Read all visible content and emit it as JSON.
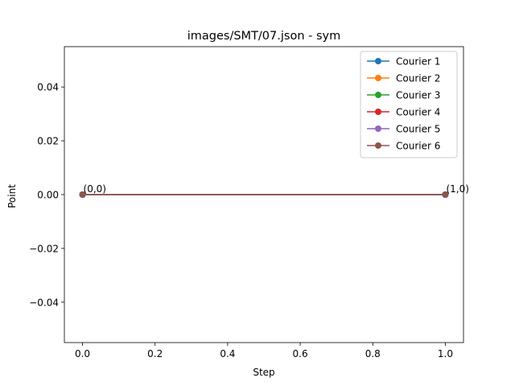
{
  "chart_data": {
    "type": "line",
    "title": "images/SMT/07.json - sym",
    "xlabel": "Step",
    "ylabel": "Point",
    "xlim": [
      -0.05,
      1.05
    ],
    "ylim": [
      -0.055,
      0.055
    ],
    "xticks": [
      0.0,
      0.2,
      0.4,
      0.6,
      0.8,
      1.0
    ],
    "xtick_labels": [
      "0.0",
      "0.2",
      "0.4",
      "0.6",
      "0.8",
      "1.0"
    ],
    "yticks": [
      0.04,
      0.02,
      0.0,
      -0.02,
      -0.04
    ],
    "ytick_labels": [
      "0.04",
      "0.02",
      "0.00",
      "−0.02",
      "−0.04"
    ],
    "legend_position": "top-right",
    "grid": false,
    "x": [
      0,
      1
    ],
    "series": [
      {
        "name": "Courier 1",
        "color": "#1f77b4",
        "values": [
          0,
          0
        ]
      },
      {
        "name": "Courier 2",
        "color": "#ff7f0e",
        "values": [
          0,
          0
        ]
      },
      {
        "name": "Courier 3",
        "color": "#2ca02c",
        "values": [
          0,
          0
        ]
      },
      {
        "name": "Courier 4",
        "color": "#d62728",
        "values": [
          0,
          0
        ]
      },
      {
        "name": "Courier 5",
        "color": "#9467bd",
        "values": [
          0,
          0
        ]
      },
      {
        "name": "Courier 6",
        "color": "#8c564b",
        "values": [
          0,
          0
        ]
      }
    ],
    "annotations": [
      {
        "text": "(0,0)",
        "x": 0,
        "y": 0
      },
      {
        "text": "(1,0)",
        "x": 1,
        "y": 0
      }
    ]
  }
}
